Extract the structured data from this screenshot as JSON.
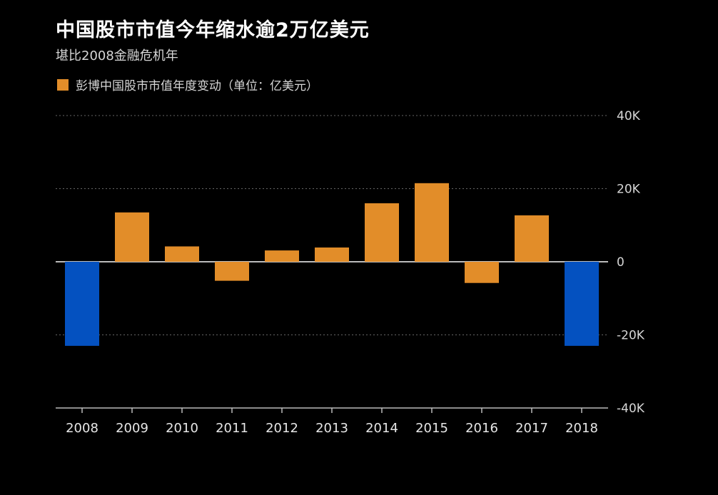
{
  "chart_data": {
    "type": "bar",
    "title": "中国股市市值今年缩水逾2万亿美元",
    "subtitle": "堪比2008金融危机年",
    "legend": [
      {
        "label": "彭博中国股市市值年度变动（单位：亿美元）",
        "color": "#e28d29"
      }
    ],
    "categories": [
      "2008",
      "2009",
      "2010",
      "2011",
      "2012",
      "2013",
      "2014",
      "2015",
      "2016",
      "2017",
      "2018"
    ],
    "values": [
      -23000,
      13500,
      4200,
      -5200,
      3100,
      3900,
      16000,
      21500,
      -5800,
      12700,
      -23000
    ],
    "highlight": [
      "2008",
      "2018"
    ],
    "colors": {
      "positive": "#e28d29",
      "negative": "#e28d29",
      "highlight": "#0451c0"
    },
    "ylim": [
      -40000,
      40000
    ],
    "yticks": [
      40000,
      20000,
      0,
      -20000,
      -40000
    ],
    "ytick_labels": [
      "40K",
      "20K",
      "0",
      "-20K",
      "-40K"
    ],
    "xlabel": "",
    "ylabel": "",
    "grid": true,
    "legend_position": "top-left"
  }
}
